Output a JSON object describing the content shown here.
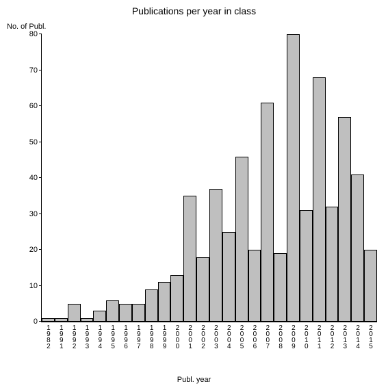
{
  "chart": {
    "type": "bar",
    "title": "Publications per year in class",
    "title_fontsize": 14,
    "ylabel": "No. of Publ.",
    "xlabel": "Publ. year",
    "label_fontsize": 11,
    "ylim": [
      0,
      80
    ],
    "ytick_step": 10,
    "yticks": [
      0,
      10,
      20,
      30,
      40,
      50,
      60,
      70,
      80
    ],
    "categories": [
      "1982",
      "1991",
      "1992",
      "1993",
      "1994",
      "1995",
      "1996",
      "1997",
      "1998",
      "1999",
      "2000",
      "2001",
      "2002",
      "2003",
      "2004",
      "2005",
      "2006",
      "2007",
      "2008",
      "2009",
      "2010",
      "2011",
      "2012",
      "2013",
      "2014",
      "2015"
    ],
    "values": [
      1,
      1,
      5,
      1,
      3,
      6,
      5,
      5,
      9,
      11,
      13,
      35,
      18,
      37,
      25,
      46,
      20,
      61,
      19,
      80,
      31,
      68,
      32,
      57,
      41,
      20
    ],
    "bar_color": "#bfbfbf",
    "bar_border_color": "#000000",
    "axis_color": "#000000",
    "background_color": "#ffffff",
    "bar_width": 1.0,
    "tick_fontsize": 11,
    "xtick_fontsize": 10
  }
}
